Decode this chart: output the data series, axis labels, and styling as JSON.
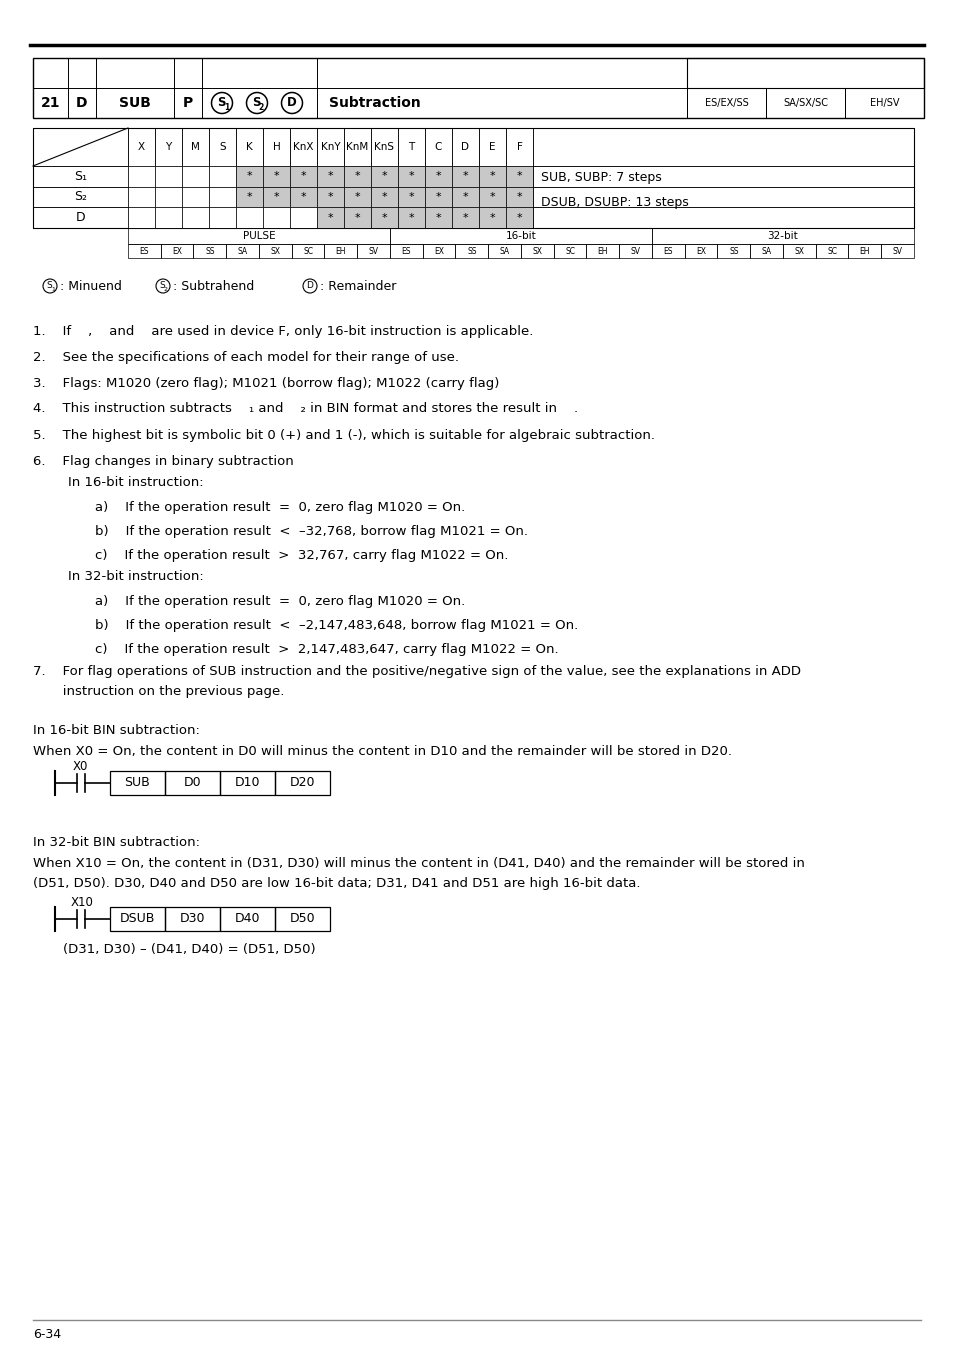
{
  "col_headers": [
    "X",
    "Y",
    "M",
    "S",
    "K",
    "H",
    "KnX",
    "KnY",
    "KnM",
    "KnS",
    "T",
    "C",
    "D",
    "E",
    "F"
  ],
  "row_s1_stars": [
    0,
    0,
    0,
    0,
    1,
    1,
    1,
    1,
    1,
    1,
    1,
    1,
    1,
    1,
    1
  ],
  "row_s2_stars": [
    0,
    0,
    0,
    0,
    1,
    1,
    1,
    1,
    1,
    1,
    1,
    1,
    1,
    1,
    1
  ],
  "row_d_stars": [
    0,
    0,
    0,
    0,
    0,
    0,
    0,
    1,
    1,
    1,
    1,
    1,
    1,
    1,
    1
  ],
  "steps_text1": "SUB, SUBP: 7 steps",
  "steps_text2": "DSUB, DSUBP: 13 steps",
  "pulse_codes": [
    "ES",
    "EX",
    "SS",
    "SA",
    "SX",
    "SC",
    "EH",
    "SV",
    "ES",
    "EX",
    "SS",
    "SA",
    "SX",
    "SC",
    "EH",
    "SV",
    "ES",
    "EX",
    "SS",
    "SA",
    "SX",
    "SC",
    "EH",
    "SV"
  ],
  "ex1_boxes": [
    "SUB",
    "D0",
    "D10",
    "D20"
  ],
  "ex2_boxes": [
    "DSUB",
    "D30",
    "D40",
    "D50"
  ],
  "ex2_formula": "(D31, D30) – (D41, D40) = (D51, D50)",
  "footer": "6-34",
  "bg_color": "#ffffff",
  "shaded_color": "#c8c8c8",
  "gray_line": "#888888"
}
